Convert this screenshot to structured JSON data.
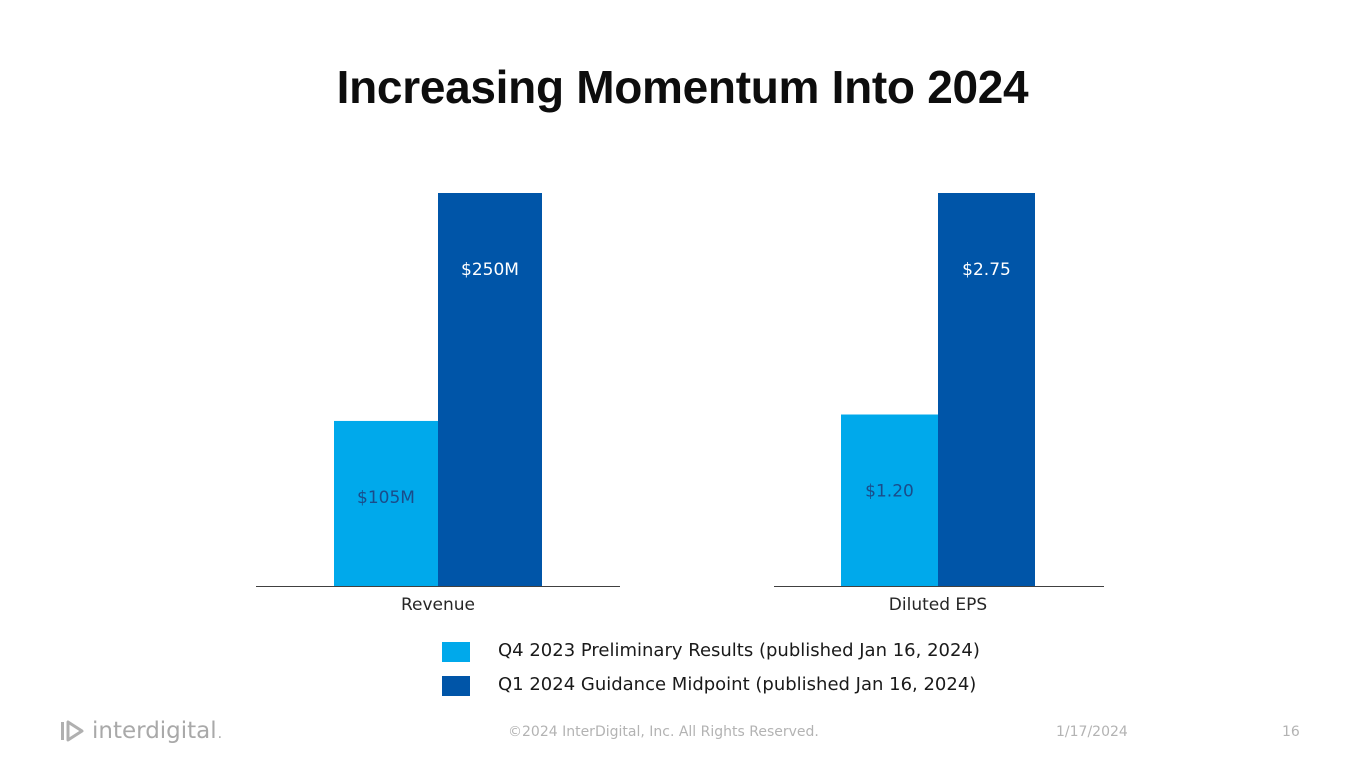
{
  "slide": {
    "title": "Increasing Momentum Into 2024",
    "footer": {
      "copyright": "©2024 InterDigital, Inc. All Rights Reserved.",
      "date": "1/17/2024",
      "page_number": "16"
    },
    "logo": {
      "text": "interdigital",
      "dot": "."
    }
  },
  "colors": {
    "q4": "#00A9EB",
    "q1": "#0055A8",
    "axis": "#404040",
    "label_light": "#1a4c8a",
    "label_dark": "#ffffff"
  },
  "chart_data": {
    "type": "bar",
    "title": "Increasing Momentum Into 2024",
    "groups": [
      {
        "name": "Revenue",
        "series": [
          {
            "name": "Q4 2023 Preliminary Results (published Jan 16, 2024)",
            "value": 105,
            "label": "$105M"
          },
          {
            "name": "Q1 2024 Guidance Midpoint (published Jan 16, 2024)",
            "value": 250,
            "label": "$250M"
          }
        ],
        "ylim": [
          0,
          250
        ],
        "unit": "$M"
      },
      {
        "name": "Diluted EPS",
        "series": [
          {
            "name": "Q4 2023 Preliminary Results (published Jan 16, 2024)",
            "value": 1.2,
            "label": "$1.20"
          },
          {
            "name": "Q1 2024 Guidance Midpoint (published Jan 16, 2024)",
            "value": 2.75,
            "label": "$2.75"
          }
        ],
        "ylim": [
          0,
          2.75
        ],
        "unit": "$"
      }
    ],
    "legend": {
      "placement": "bottom",
      "entries": [
        "Q4 2023 Preliminary Results (published Jan 16, 2024)",
        "Q1 2024 Guidance Midpoint (published Jan 16, 2024)"
      ]
    },
    "grid": false
  }
}
